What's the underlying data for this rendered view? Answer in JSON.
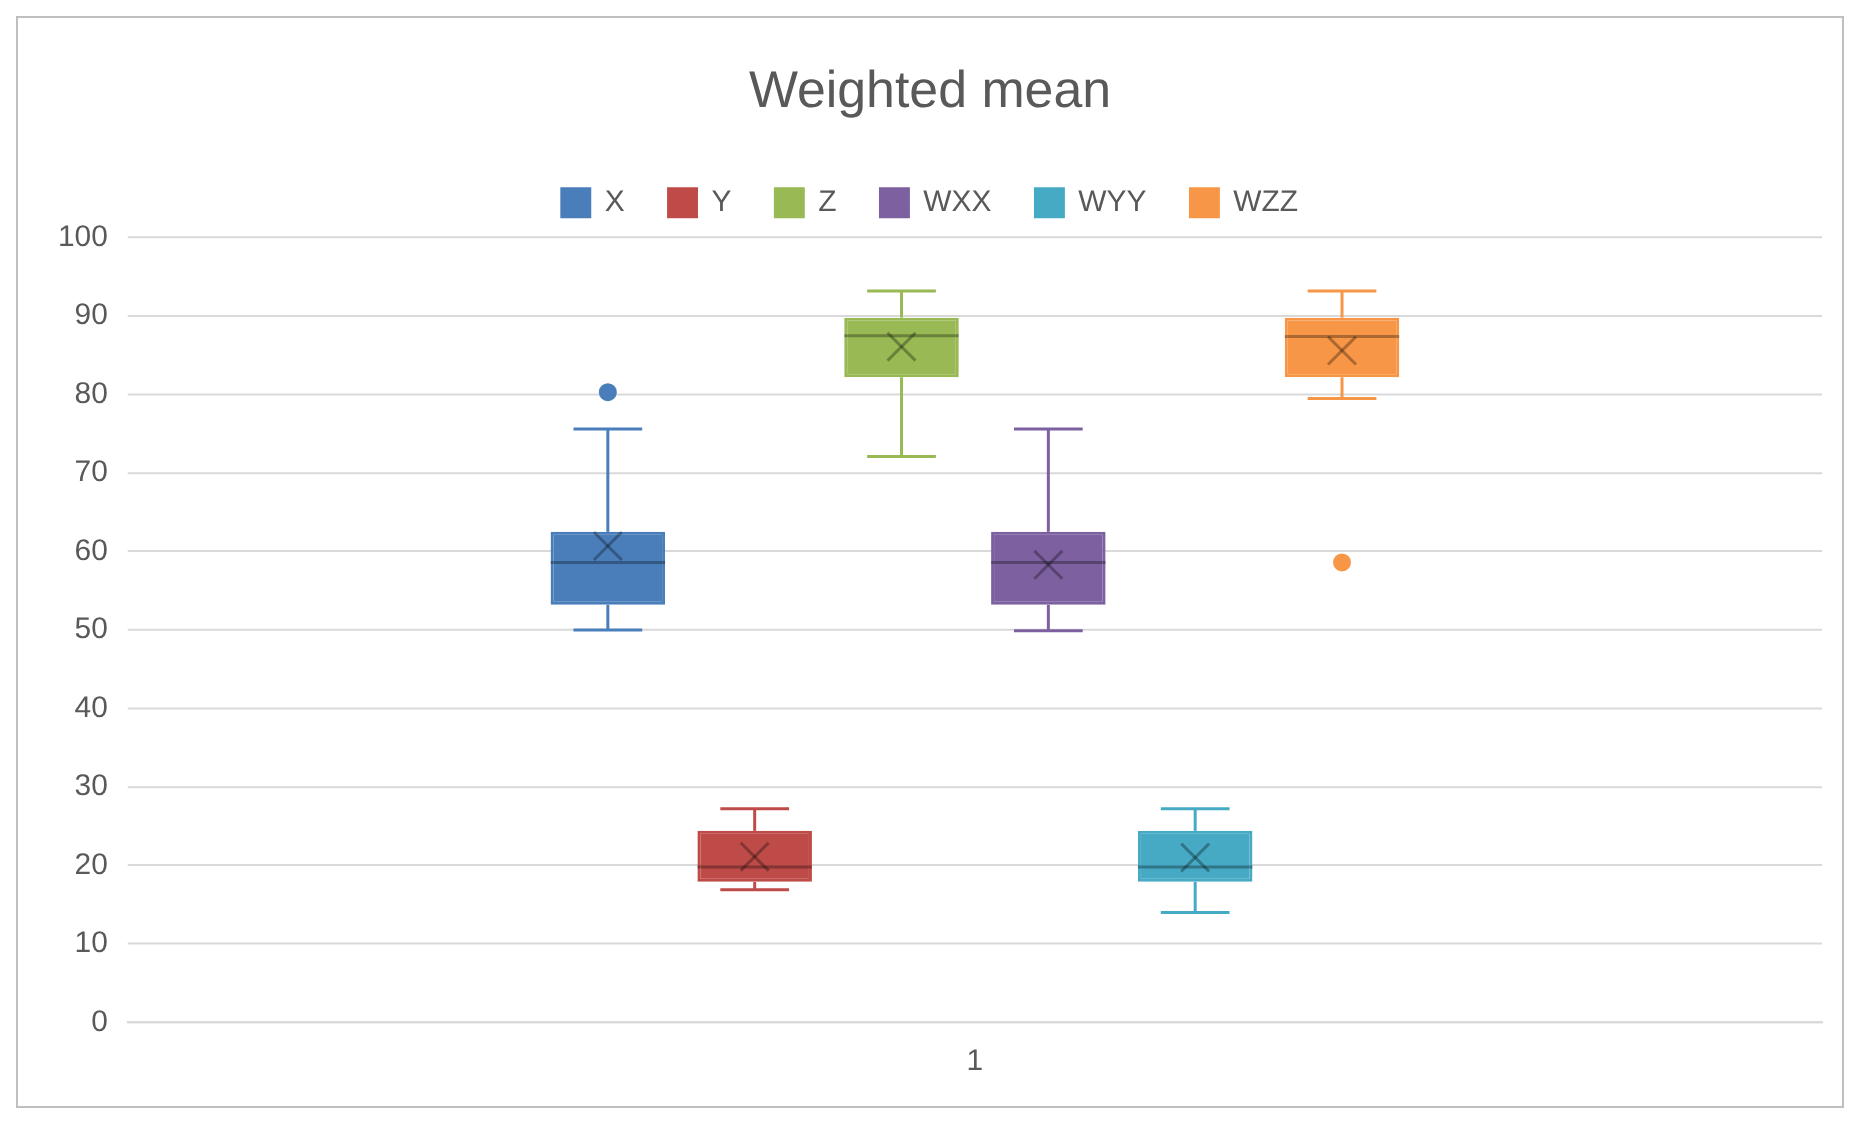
{
  "chart_data": {
    "type": "box",
    "title": "Weighted mean",
    "categories": [
      "1"
    ],
    "ylim": [
      0,
      100
    ],
    "yticks": [
      0,
      10,
      20,
      30,
      40,
      50,
      60,
      70,
      80,
      90,
      100
    ],
    "grid": "y",
    "legend": "top",
    "series": [
      {
        "name": "X",
        "color": "#4a7ebb",
        "boxes": [
          {
            "low": 50,
            "q1": 53.2,
            "median": 58.6,
            "q3": 62.5,
            "high": 75.6,
            "mean": 60.7,
            "outliers": [
              80.3
            ]
          }
        ]
      },
      {
        "name": "Y",
        "color": "#be4b48",
        "boxes": [
          {
            "low": 16.9,
            "q1": 17.9,
            "median": 19.8,
            "q3": 24.4,
            "high": 27.2,
            "mean": 21.1
          }
        ]
      },
      {
        "name": "Z",
        "color": "#98b954",
        "boxes": [
          {
            "low": 72.1,
            "q1": 82.2,
            "median": 87.5,
            "q3": 89.8,
            "high": 93.2,
            "mean": 86.1
          }
        ]
      },
      {
        "name": "WXX",
        "color": "#7d60a0",
        "boxes": [
          {
            "low": 49.9,
            "q1": 53.2,
            "median": 58.6,
            "q3": 62.5,
            "high": 75.6,
            "mean": 58.3
          }
        ]
      },
      {
        "name": "WYY",
        "color": "#46aac5",
        "boxes": [
          {
            "low": 14,
            "q1": 17.9,
            "median": 19.8,
            "q3": 24.4,
            "high": 27.2,
            "mean": 21
          }
        ]
      },
      {
        "name": "WZZ",
        "color": "#f79646",
        "boxes": [
          {
            "low": 79.5,
            "q1": 82.2,
            "median": 87.4,
            "q3": 89.8,
            "high": 93.2,
            "mean": 85.6,
            "outliers": [
              58.6
            ]
          }
        ]
      }
    ]
  }
}
